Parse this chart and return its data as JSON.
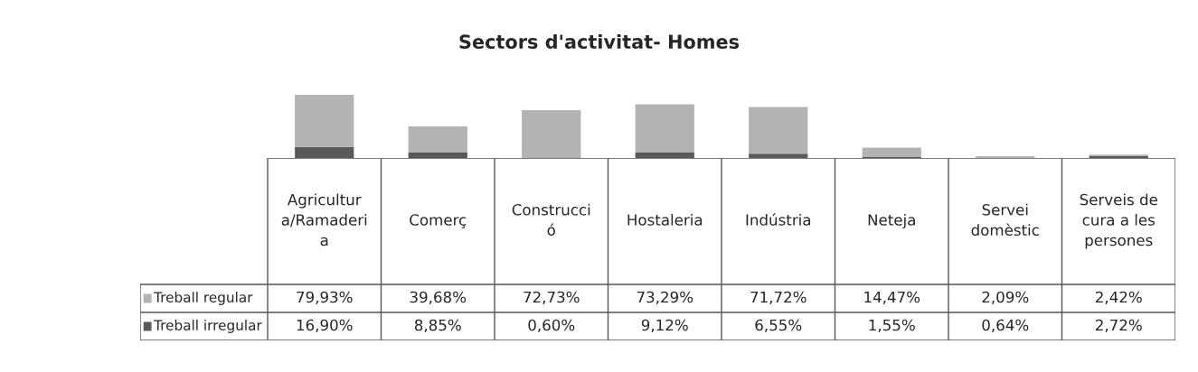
{
  "chart_data": {
    "type": "bar",
    "title": "Sectors d'activitat- Homes",
    "stacked": true,
    "categories": [
      "Agricultura/Ramaderia",
      "Comerç",
      "Construcció",
      "Hostaleria",
      "Indústria",
      "Neteja",
      "Servei domèstic",
      "Serveis de cura a les persones"
    ],
    "series": [
      {
        "name": "Treball irregular",
        "color": "#595959",
        "values": [
          16.9,
          8.85,
          0.6,
          9.12,
          6.55,
          1.55,
          0.64,
          2.72
        ],
        "value_labels": [
          "16,90%",
          "8,85%",
          "0,60%",
          "9,12%",
          "6,55%",
          "1,55%",
          "0,64%",
          "2,72%"
        ]
      },
      {
        "name": "Treball regular",
        "color": "#b3b3b3",
        "values": [
          79.93,
          39.68,
          72.73,
          73.29,
          71.72,
          14.47,
          2.09,
          2.42
        ],
        "value_labels": [
          "79,93%",
          "39,68%",
          "72,73%",
          "73,29%",
          "71,72%",
          "14,47%",
          "2,09%",
          "2,42%"
        ]
      }
    ],
    "legend": "left"
  }
}
